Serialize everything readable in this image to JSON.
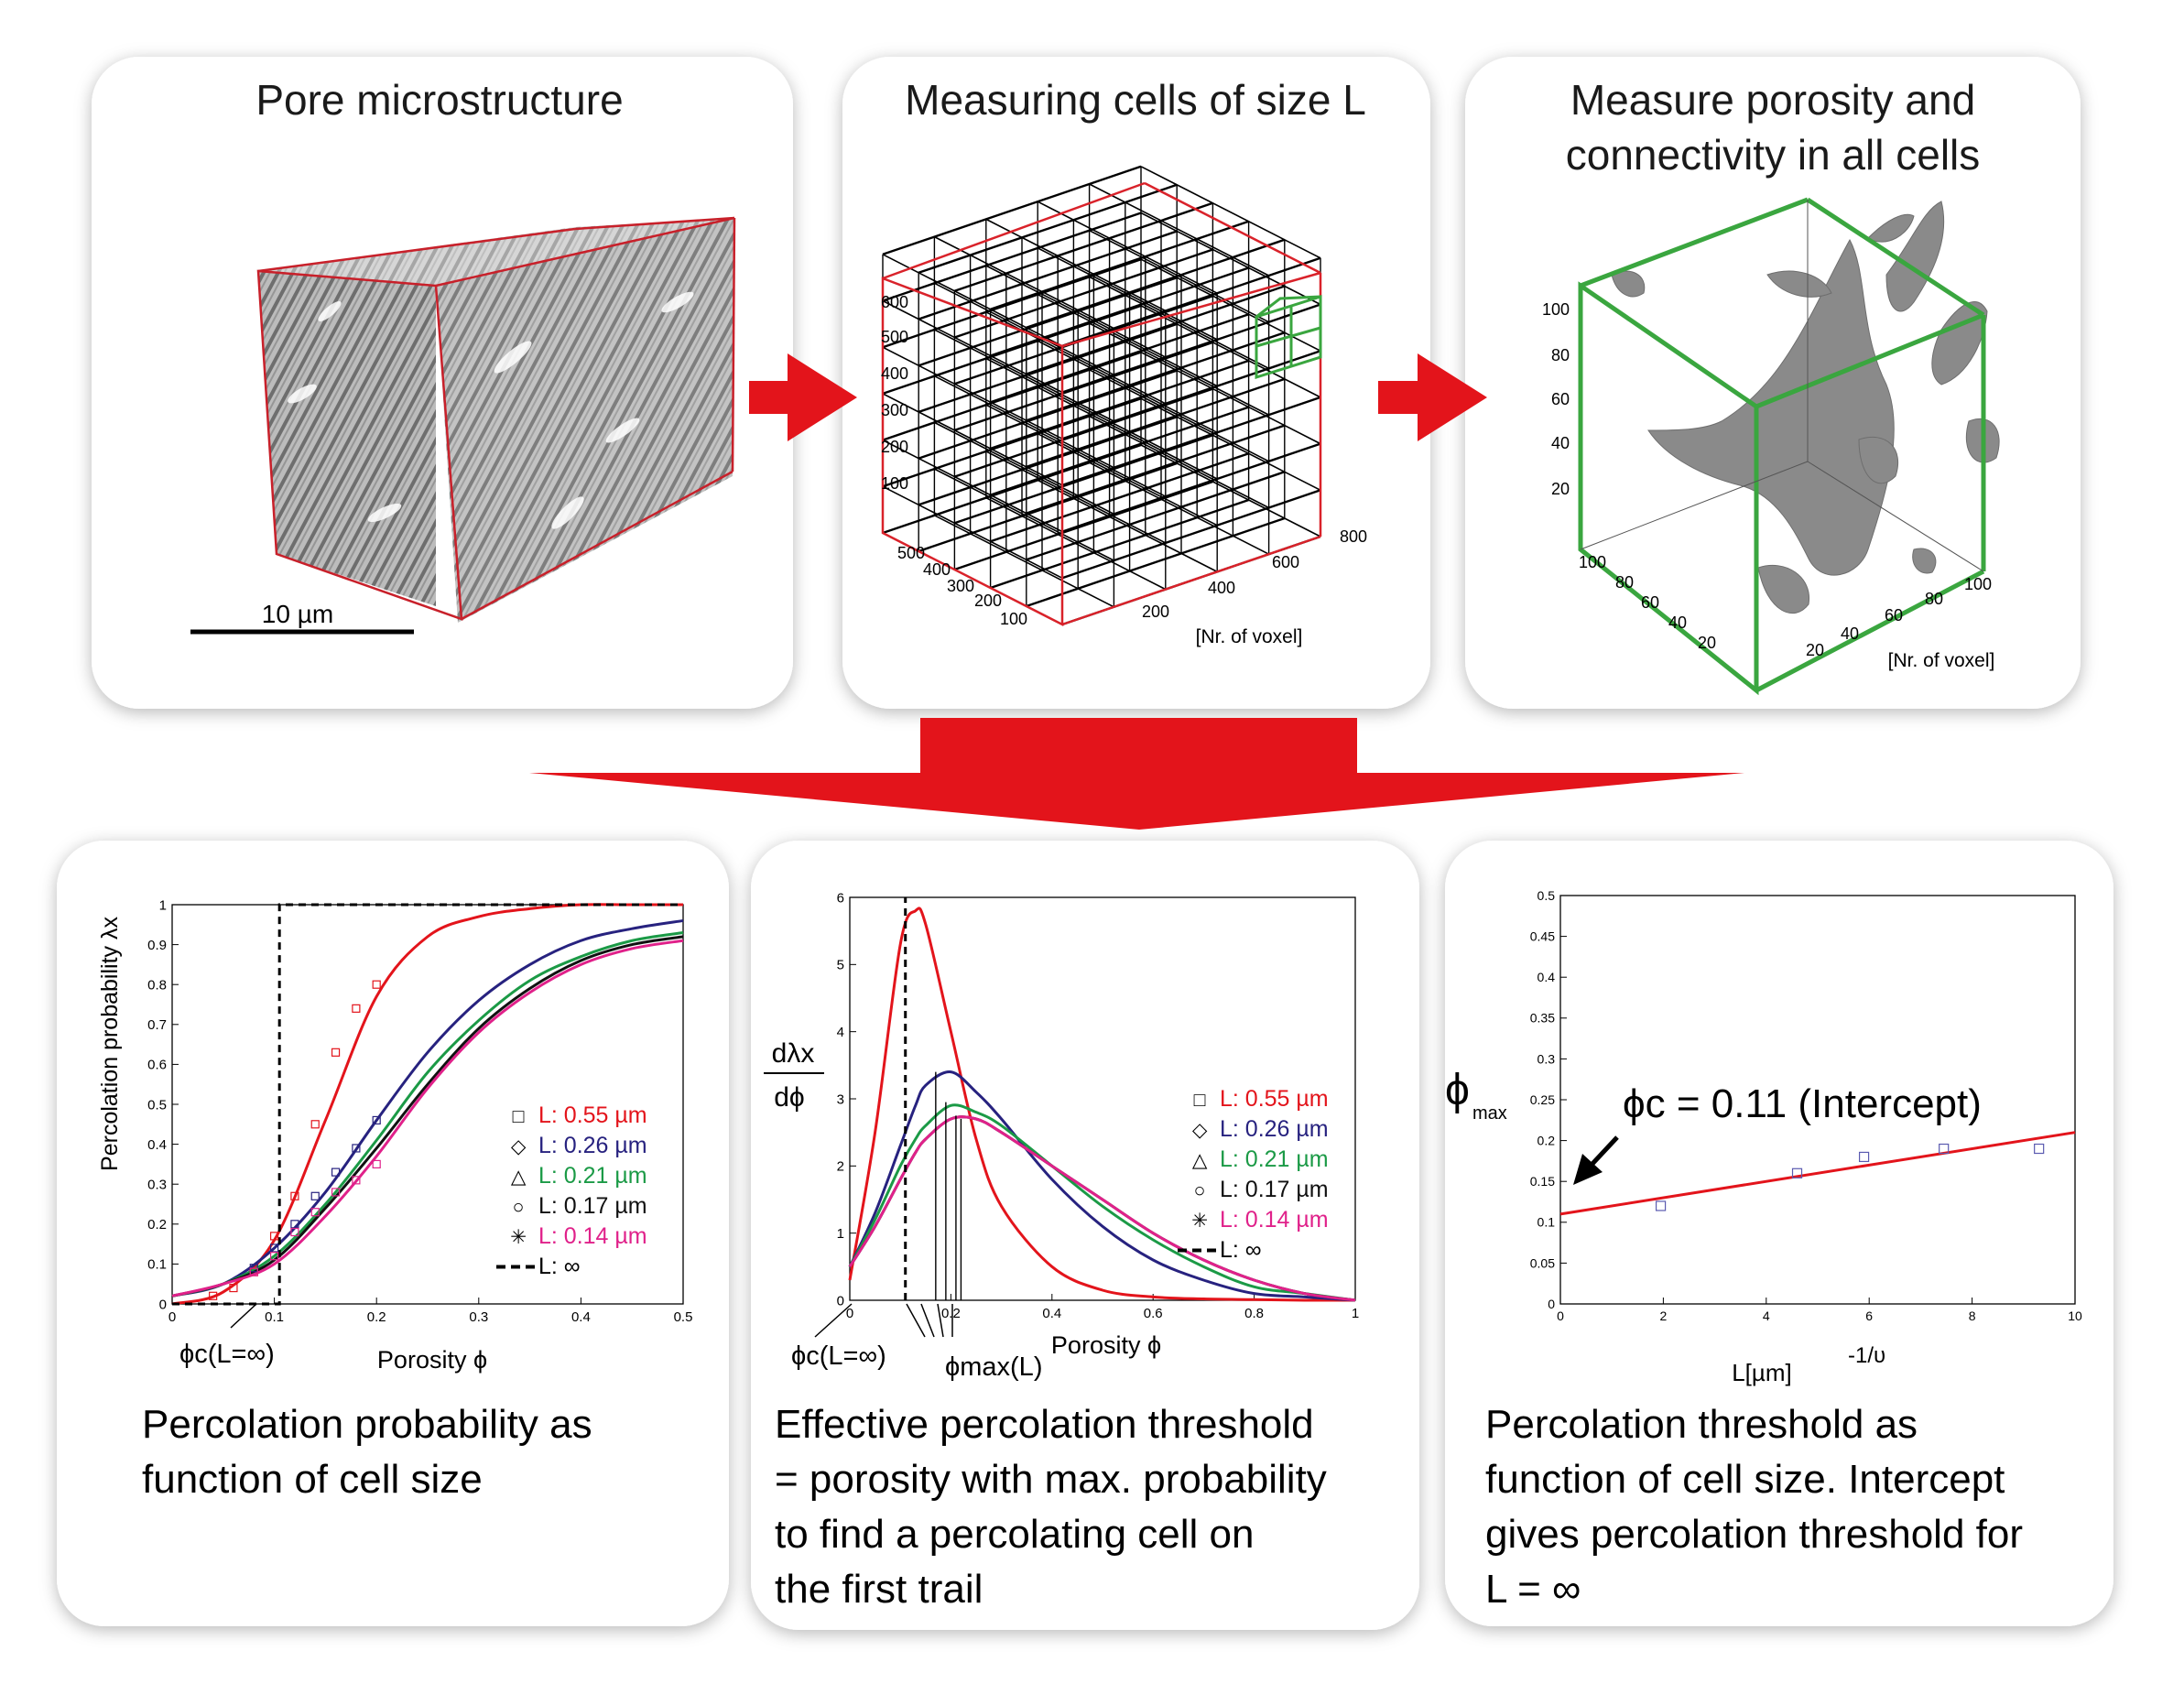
{
  "panels": {
    "pore": {
      "title": "Pore microstructure",
      "scale_label": "10 µm"
    },
    "cells": {
      "title": "Measuring cells of size L",
      "z_ticks": [
        "100",
        "200",
        "300",
        "400",
        "500",
        "600"
      ],
      "y_ticks": [
        "100",
        "200",
        "300",
        "400",
        "500"
      ],
      "x_ticks": [
        "200",
        "400",
        "600",
        "800"
      ],
      "axis_label": "[Nr. of voxel]"
    },
    "measure": {
      "title_line1": "Measure porosity and",
      "title_line2": "connectivity in all cells",
      "z_ticks": [
        "20",
        "40",
        "60",
        "80",
        "100"
      ],
      "y_ticks": [
        "20",
        "40",
        "60",
        "80",
        "100"
      ],
      "x_ticks": [
        "20",
        "40",
        "60",
        "80",
        "100"
      ],
      "axis_label": "[Nr. of voxel]"
    },
    "prob": {
      "ylabel": "Percolation probability λx",
      "xlabel": "Porosity ϕ",
      "phi_c_label": "ϕc(L=∞)",
      "caption_line1": "Percolation probability as",
      "caption_line2": "function of cell size"
    },
    "deriv": {
      "ylabel_num": "dλx",
      "ylabel_den": "dϕ",
      "xlabel": "Porosity ϕ",
      "phi_c_label": "ϕc(L=∞)",
      "phi_max_label": "ϕmax(L)",
      "caption_line1": "Effective percolation threshold",
      "caption_line2": "= porosity with max. probability",
      "caption_line3": "to find a percolating cell on",
      "caption_line4": "the first trail"
    },
    "thresh": {
      "ylabel": "ϕ",
      "ylabel_sub": "max",
      "xlabel": "L[µm]",
      "xlabel_sup": "-1/υ",
      "intercept_label": "ϕc = 0.11 (Intercept)",
      "caption_line1": "Percolation threshold as",
      "caption_line2": "function of cell size. Intercept",
      "caption_line3": "gives percolation threshold for",
      "caption_line4": "L = ∞"
    }
  },
  "legend": [
    {
      "symbol": "□",
      "label": "L: 0.55 µm",
      "color": "#e3141b"
    },
    {
      "symbol": "◇",
      "label": "L: 0.26 µm",
      "color": "#27227f"
    },
    {
      "symbol": "△",
      "label": "L: 0.21 µm",
      "color": "#1b9a46"
    },
    {
      "symbol": "○",
      "label": "L: 0.17 µm",
      "color": "#111111"
    },
    {
      "symbol": "✳",
      "label": "L: 0.14 µm",
      "color": "#e0218a"
    },
    {
      "symbol": "",
      "label": "L: ∞",
      "color": "#000000"
    }
  ],
  "colors": {
    "arrow": "#e3141b",
    "box_red": "#d9222a",
    "box_green": "#3aa63f",
    "grey": "#7c7c7c"
  },
  "chart_data": [
    {
      "type": "line",
      "ylabel": "Percolation probability λx",
      "xlabel": "Porosity ϕ",
      "xlim": [
        0,
        0.5
      ],
      "ylim": [
        0,
        1
      ],
      "x_ticks": [
        "0",
        "0.1",
        "0.2",
        "0.3",
        "0.4",
        "0.5"
      ],
      "y_ticks": [
        "0",
        "0.1",
        "0.2",
        "0.3",
        "0.4",
        "0.5",
        "0.6",
        "0.7",
        "0.8",
        "0.9",
        "1"
      ],
      "x": [
        0,
        0.05,
        0.1,
        0.15,
        0.2,
        0.25,
        0.3,
        0.35,
        0.4,
        0.45,
        0.5
      ],
      "series": [
        {
          "name": "L: 0.55 µm",
          "values": [
            0.0,
            0.03,
            0.16,
            0.46,
            0.77,
            0.92,
            0.97,
            0.99,
            1.0,
            1.0,
            1.0
          ]
        },
        {
          "name": "L: 0.26 µm",
          "values": [
            0.02,
            0.05,
            0.14,
            0.28,
            0.46,
            0.63,
            0.76,
            0.85,
            0.91,
            0.94,
            0.96
          ]
        },
        {
          "name": "L: 0.21 µm",
          "values": [
            0.02,
            0.05,
            0.12,
            0.25,
            0.41,
            0.58,
            0.71,
            0.81,
            0.87,
            0.91,
            0.93
          ]
        },
        {
          "name": "L: 0.17 µm",
          "values": [
            0.02,
            0.05,
            0.11,
            0.24,
            0.39,
            0.55,
            0.69,
            0.79,
            0.86,
            0.9,
            0.92
          ]
        },
        {
          "name": "L: 0.14 µm",
          "values": [
            0.02,
            0.05,
            0.1,
            0.22,
            0.37,
            0.54,
            0.68,
            0.78,
            0.85,
            0.89,
            0.91
          ]
        },
        {
          "name": "L: ∞",
          "x": [
            0,
            0.105,
            0.105,
            0.5
          ],
          "values": [
            0,
            0,
            1,
            1
          ]
        }
      ],
      "scatter": [
        {
          "series": "L: 0.55 µm",
          "x": [
            0.04,
            0.06,
            0.08,
            0.1,
            0.12,
            0.14,
            0.16,
            0.18,
            0.2
          ],
          "values": [
            0.02,
            0.04,
            0.08,
            0.17,
            0.27,
            0.45,
            0.63,
            0.74,
            0.8
          ]
        },
        {
          "series": "L: 0.26 µm",
          "x": [
            0.08,
            0.1,
            0.12,
            0.14,
            0.16,
            0.18,
            0.2
          ],
          "values": [
            0.09,
            0.14,
            0.2,
            0.27,
            0.33,
            0.39,
            0.46
          ]
        },
        {
          "series": "L: 0.14 µm",
          "x": [
            0.08,
            0.1,
            0.12,
            0.14,
            0.16,
            0.18,
            0.2
          ],
          "values": [
            0.08,
            0.12,
            0.18,
            0.23,
            0.28,
            0.31,
            0.35
          ]
        }
      ]
    },
    {
      "type": "line",
      "ylabel": "dλx/dϕ",
      "xlabel": "Porosity ϕ",
      "xlim": [
        0,
        1
      ],
      "ylim": [
        0,
        6
      ],
      "x_ticks": [
        "0",
        "0.2",
        "0.4",
        "0.6",
        "0.8",
        "1"
      ],
      "y_ticks": [
        "0",
        "1",
        "2",
        "3",
        "4",
        "5",
        "6"
      ],
      "x": [
        0,
        0.05,
        0.1,
        0.13,
        0.15,
        0.2,
        0.25,
        0.3,
        0.4,
        0.5,
        0.6,
        0.7,
        0.8,
        0.9,
        1.0
      ],
      "series": [
        {
          "name": "L: 0.55 µm",
          "values": [
            0.3,
            2.5,
            5.3,
            5.8,
            5.6,
            4.0,
            2.4,
            1.4,
            0.5,
            0.15,
            0.05,
            0.02,
            0.01,
            0,
            0
          ]
        },
        {
          "name": "L: 0.26 µm",
          "values": [
            0.5,
            1.3,
            2.3,
            2.9,
            3.2,
            3.4,
            3.1,
            2.7,
            1.8,
            1.1,
            0.6,
            0.3,
            0.1,
            0.05,
            0
          ]
        },
        {
          "name": "L: 0.21 µm",
          "values": [
            0.5,
            1.2,
            2.0,
            2.4,
            2.6,
            2.9,
            2.8,
            2.6,
            2.0,
            1.4,
            0.9,
            0.5,
            0.2,
            0.1,
            0
          ]
        },
        {
          "name": "L: 0.17 µm",
          "values": [
            0.5,
            1.1,
            1.8,
            2.2,
            2.4,
            2.7,
            2.7,
            2.5,
            2.0,
            1.5,
            1.0,
            0.6,
            0.3,
            0.1,
            0
          ]
        },
        {
          "name": "L: 0.14 µm",
          "values": [
            0.5,
            1.1,
            1.8,
            2.2,
            2.4,
            2.7,
            2.7,
            2.5,
            2.0,
            1.5,
            1.0,
            0.6,
            0.3,
            0.1,
            0
          ]
        },
        {
          "name": "L: ∞",
          "x": [
            0.11,
            0.11
          ],
          "values": [
            0,
            6
          ]
        }
      ]
    },
    {
      "type": "scatter",
      "ylabel": "ϕmax",
      "xlabel": "L[µm] -1/υ",
      "xlim": [
        0,
        10
      ],
      "ylim": [
        0,
        0.5
      ],
      "x_ticks": [
        "0",
        "2",
        "4",
        "6",
        "8",
        "10"
      ],
      "y_ticks": [
        "0",
        "0.05",
        "0.1",
        "0.15",
        "0.2",
        "0.25",
        "0.3",
        "0.35",
        "0.4",
        "0.45",
        "0.5"
      ],
      "points": {
        "x": [
          1.95,
          4.6,
          5.9,
          7.45,
          9.3
        ],
        "y": [
          0.12,
          0.16,
          0.18,
          0.19,
          0.19
        ]
      },
      "fit": {
        "x": [
          0,
          10
        ],
        "y": [
          0.11,
          0.21
        ]
      }
    }
  ]
}
